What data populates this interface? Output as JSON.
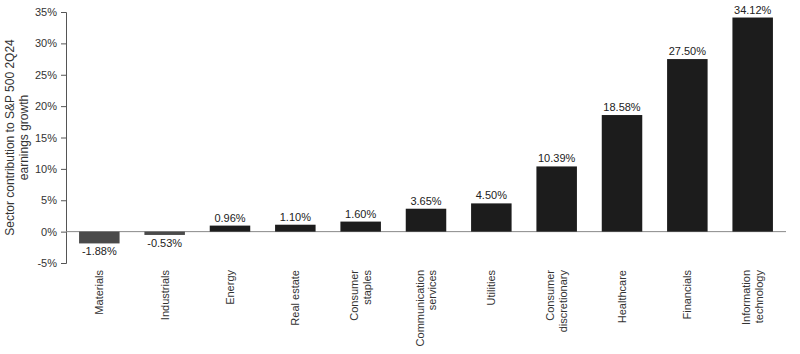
{
  "chart_data": {
    "type": "bar",
    "y_label": "Sector contribution to S&P 500 2Q24 earnings growth",
    "categories": [
      "Materials",
      "Industrials",
      "Energy",
      "Real estate",
      "Consumer staples",
      "Communication services",
      "Utilities",
      "Consumer discretionary",
      "Healthcare",
      "Financials",
      "Information technology"
    ],
    "values": [
      -1.88,
      -0.53,
      0.96,
      1.1,
      1.6,
      3.65,
      4.5,
      10.39,
      18.58,
      27.5,
      34.12
    ],
    "value_labels": [
      "-1.88%",
      "-0.53%",
      "0.96%",
      "1.10%",
      "1.60%",
      "3.65%",
      "4.50%",
      "10.39%",
      "18.58%",
      "27.50%",
      "34.12%"
    ],
    "colors": [
      "#4a4a4a",
      "#4a4a4a",
      "#1c1c1c",
      "#1c1c1c",
      "#1c1c1c",
      "#1c1c1c",
      "#1c1c1c",
      "#1c1c1c",
      "#1c1c1c",
      "#1c1c1c",
      "#1c1c1c"
    ],
    "ylim": [
      -5,
      35
    ],
    "yticks": [
      {
        "value": -5,
        "label": "-5%"
      },
      {
        "value": 0,
        "label": "0%"
      },
      {
        "value": 5,
        "label": "5%"
      },
      {
        "value": 10,
        "label": "10%"
      },
      {
        "value": 15,
        "label": "15%"
      },
      {
        "value": 20,
        "label": "20%"
      },
      {
        "value": 25,
        "label": "25%"
      },
      {
        "value": 30,
        "label": "30%"
      },
      {
        "value": 35,
        "label": "35%"
      }
    ],
    "grid": false,
    "data_labels": true
  }
}
